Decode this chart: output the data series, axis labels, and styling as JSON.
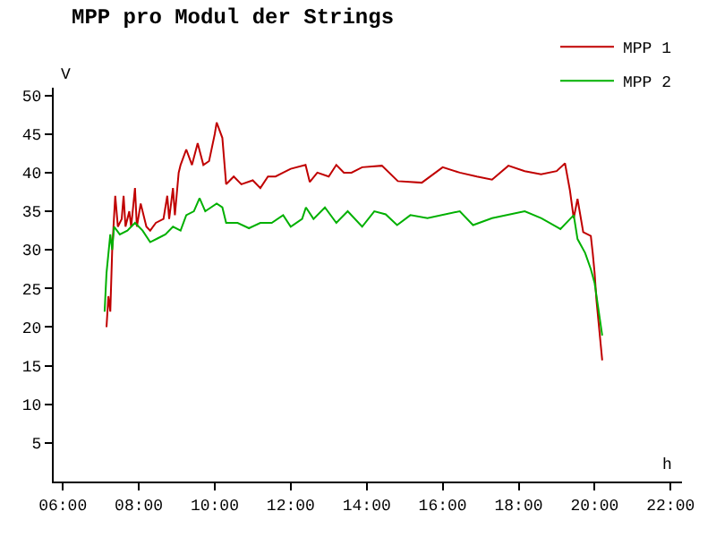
{
  "chart_data": {
    "type": "line",
    "title": "MPP pro Modul der Strings",
    "xlabel": "h",
    "ylabel": "V",
    "xlim": [
      5.76,
      22.3
    ],
    "ylim": [
      0,
      51
    ],
    "xticks": [
      {
        "value": 6,
        "label": "06:00"
      },
      {
        "value": 8,
        "label": "08:00"
      },
      {
        "value": 10,
        "label": "10:00"
      },
      {
        "value": 12,
        "label": "12:00"
      },
      {
        "value": 14,
        "label": "14:00"
      },
      {
        "value": 16,
        "label": "16:00"
      },
      {
        "value": 18,
        "label": "18:00"
      },
      {
        "value": 20,
        "label": "20:00"
      },
      {
        "value": 22,
        "label": "22:00"
      }
    ],
    "yticks": [
      5,
      10,
      15,
      20,
      25,
      30,
      35,
      40,
      45,
      50
    ],
    "legend": "top right",
    "marker": "none",
    "line_style": "solid",
    "series": [
      {
        "name": "MPP 1",
        "color": "#c00000",
        "x": [
          7.15,
          7.2,
          7.25,
          7.3,
          7.38,
          7.45,
          7.55,
          7.6,
          7.65,
          7.75,
          7.8,
          7.9,
          7.95,
          8.05,
          8.2,
          8.3,
          8.45,
          8.65,
          8.75,
          8.8,
          8.9,
          8.95,
          9.05,
          9.1,
          9.25,
          9.4,
          9.55,
          9.7,
          9.85,
          10.0,
          10.05,
          10.2,
          10.3,
          10.5,
          10.7,
          11.0,
          11.2,
          11.4,
          11.6,
          11.8,
          12.0,
          12.39,
          12.5,
          12.7,
          13.0,
          13.2,
          13.4,
          13.6,
          13.88,
          14.4,
          14.82,
          15.45,
          16.0,
          16.45,
          16.9,
          17.3,
          17.73,
          18.16,
          18.59,
          19.0,
          19.22,
          19.35,
          19.45,
          19.55,
          19.7,
          19.9,
          19.95,
          20.0,
          20.05,
          20.2
        ],
        "values": [
          20,
          24,
          22,
          30,
          37,
          33,
          34,
          37,
          33,
          35,
          33,
          38,
          33,
          36,
          33,
          32.5,
          33.5,
          34,
          37,
          34,
          38,
          34.5,
          40,
          41,
          43,
          41,
          43.8,
          41,
          41.5,
          45,
          46.5,
          44.5,
          38.5,
          39.5,
          38.5,
          39,
          38,
          39.5,
          39.5,
          40,
          40.5,
          41,
          38.8,
          40,
          39.5,
          41,
          40,
          40,
          40.7,
          40.9,
          38.9,
          38.7,
          40.7,
          40,
          39.5,
          39.1,
          40.9,
          40.2,
          39.8,
          40.2,
          41.2,
          37.7,
          34.1,
          36.6,
          32.3,
          31.8,
          29.6,
          27,
          23.4,
          15.7
        ]
      },
      {
        "name": "MPP 2",
        "color": "#00b000",
        "x": [
          7.1,
          7.15,
          7.25,
          7.3,
          7.35,
          7.5,
          7.7,
          7.9,
          8.1,
          8.3,
          8.5,
          8.7,
          8.9,
          9.1,
          9.25,
          9.45,
          9.6,
          9.75,
          9.9,
          10.05,
          10.2,
          10.3,
          10.6,
          10.9,
          11.2,
          11.5,
          11.8,
          12.0,
          12.3,
          12.4,
          12.6,
          12.9,
          13.2,
          13.5,
          13.88,
          14.2,
          14.5,
          14.8,
          15.15,
          15.6,
          16.45,
          16.8,
          17.3,
          18.16,
          18.6,
          19.1,
          19.45,
          19.55,
          19.75,
          19.9,
          20.0,
          20.08,
          20.2
        ],
        "values": [
          22,
          27,
          32,
          30,
          33,
          32,
          32.5,
          33.5,
          32.5,
          31,
          31.5,
          32,
          33,
          32.5,
          34.5,
          35,
          36.7,
          35,
          35.5,
          36,
          35.5,
          33.5,
          33.5,
          32.8,
          33.5,
          33.5,
          34.5,
          33,
          34,
          35.5,
          34,
          35.5,
          33.5,
          35,
          33,
          35,
          34.6,
          33.2,
          34.5,
          34.1,
          35,
          33.2,
          34.1,
          35,
          34.1,
          32.7,
          34.5,
          31.4,
          29.6,
          27.5,
          25.7,
          23,
          18.9
        ]
      }
    ]
  }
}
